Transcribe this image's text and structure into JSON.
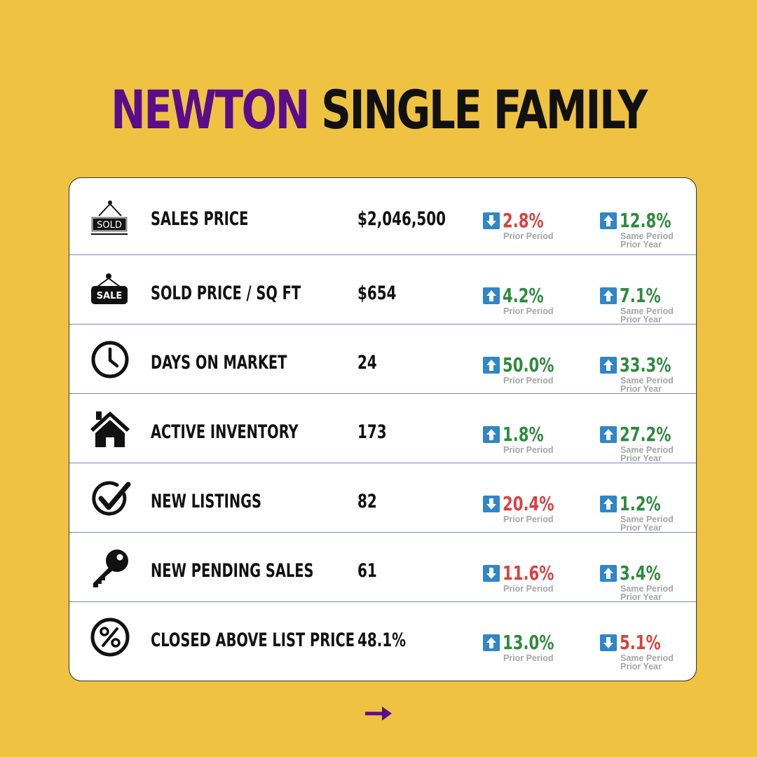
{
  "title": {
    "accent": "NEWTON",
    "rest": "SINGLE FAMILY"
  },
  "colors": {
    "background": "#EFC341",
    "accent": "#5B0C8C",
    "up": "#2E8A3F",
    "down": "#D94141",
    "arrow_box": "#2F86C8"
  },
  "rows": [
    {
      "icon": "sold-sign-icon",
      "label": "SALES PRICE",
      "value": "$2,046,500",
      "prior": {
        "dir": "down",
        "pct": "2.8%",
        "sub1": "Prior Period"
      },
      "year": {
        "dir": "up",
        "pct": "12.8%",
        "sub1": "Same Period",
        "sub2": "Prior Year"
      }
    },
    {
      "icon": "sale-tag-icon",
      "label": "SOLD PRICE / SQ FT",
      "value": "$654",
      "prior": {
        "dir": "up",
        "pct": "4.2%",
        "sub1": "Prior Period"
      },
      "year": {
        "dir": "up",
        "pct": "7.1%",
        "sub1": "Same Period",
        "sub2": "Prior Year"
      }
    },
    {
      "icon": "clock-icon",
      "label": "DAYS ON MARKET",
      "value": "24",
      "prior": {
        "dir": "up",
        "pct": "50.0%",
        "sub1": "Prior Period"
      },
      "year": {
        "dir": "up",
        "pct": "33.3%",
        "sub1": "Same Period",
        "sub2": "Prior Year"
      }
    },
    {
      "icon": "house-icon",
      "label": "ACTIVE INVENTORY",
      "value": "173",
      "prior": {
        "dir": "up",
        "pct": "1.8%",
        "sub1": "Prior Period"
      },
      "year": {
        "dir": "up",
        "pct": "27.2%",
        "sub1": "Same Period",
        "sub2": "Prior Year"
      }
    },
    {
      "icon": "checkmark-icon",
      "label": "NEW LISTINGS",
      "value": "82",
      "prior": {
        "dir": "down",
        "pct": "20.4%",
        "sub1": "Prior Period"
      },
      "year": {
        "dir": "up",
        "pct": "1.2%",
        "sub1": "Same Period",
        "sub2": "Prior Year"
      }
    },
    {
      "icon": "key-icon",
      "label": "NEW PENDING SALES",
      "value": "61",
      "prior": {
        "dir": "down",
        "pct": "11.6%",
        "sub1": "Prior Period"
      },
      "year": {
        "dir": "up",
        "pct": "3.4%",
        "sub1": "Same Period",
        "sub2": "Prior Year"
      }
    },
    {
      "icon": "percent-icon",
      "label": "CLOSED ABOVE LIST PRICE",
      "value": "48.1%",
      "prior": {
        "dir": "up",
        "pct": "13.0%",
        "sub1": "Prior Period"
      },
      "year": {
        "dir": "down",
        "pct": "5.1%",
        "sub1": "Same Period",
        "sub2": "Prior Year"
      }
    }
  ],
  "footer": {
    "icon": "arrow-right-icon"
  }
}
